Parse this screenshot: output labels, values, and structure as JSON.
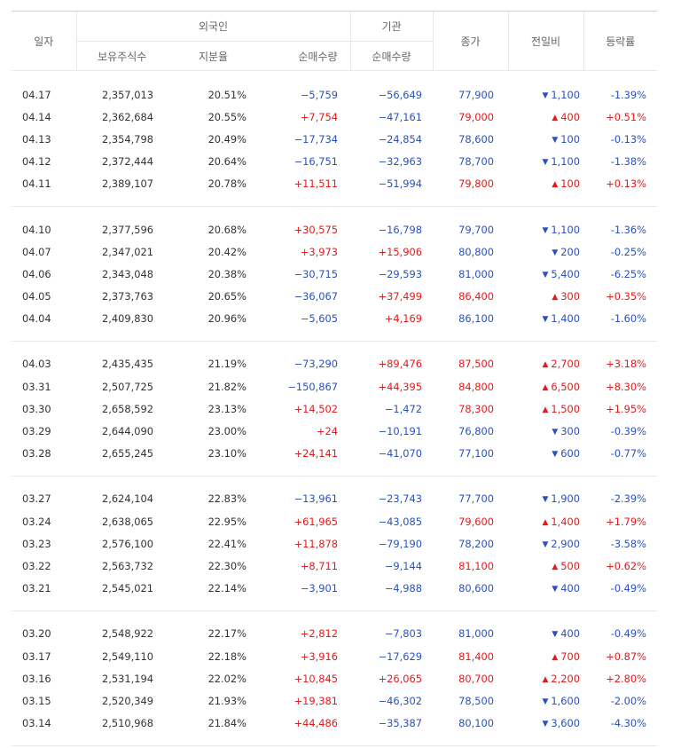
{
  "header": {
    "date": "일자",
    "foreign": "외국인",
    "institution": "기관",
    "holdings": "보유주식수",
    "ownership": "지분율",
    "foreign_net": "순매수량",
    "inst_net": "순매수량",
    "close": "종가",
    "change": "전일비",
    "rate": "등락률"
  },
  "colors": {
    "up": "#e51a1a",
    "down": "#2a52be",
    "text": "#333333"
  },
  "groups": [
    {
      "rows": [
        {
          "date": "04.17",
          "holding": "2,357,013",
          "ratio": "20.51%",
          "fnet": "−5,759",
          "inet": "−56,649",
          "close": "77,900",
          "dir": "down",
          "chg": "1,100",
          "rate": "-1.39%"
        },
        {
          "date": "04.14",
          "holding": "2,362,684",
          "ratio": "20.55%",
          "fnet": "+7,754",
          "inet": "−47,161",
          "close": "79,000",
          "dir": "up",
          "chg": "400",
          "rate": "+0.51%"
        },
        {
          "date": "04.13",
          "holding": "2,354,798",
          "ratio": "20.49%",
          "fnet": "−17,734",
          "inet": "−24,854",
          "close": "78,600",
          "dir": "down",
          "chg": "100",
          "rate": "-0.13%"
        },
        {
          "date": "04.12",
          "holding": "2,372,444",
          "ratio": "20.64%",
          "fnet": "−16,751",
          "inet": "−32,963",
          "close": "78,700",
          "dir": "down",
          "chg": "1,100",
          "rate": "-1.38%"
        },
        {
          "date": "04.11",
          "holding": "2,389,107",
          "ratio": "20.78%",
          "fnet": "+11,511",
          "inet": "−51,994",
          "close": "79,800",
          "dir": "up",
          "chg": "100",
          "rate": "+0.13%"
        }
      ]
    },
    {
      "rows": [
        {
          "date": "04.10",
          "holding": "2,377,596",
          "ratio": "20.68%",
          "fnet": "+30,575",
          "inet": "−16,798",
          "close": "79,700",
          "dir": "down",
          "chg": "1,100",
          "rate": "-1.36%"
        },
        {
          "date": "04.07",
          "holding": "2,347,021",
          "ratio": "20.42%",
          "fnet": "+3,973",
          "inet": "+15,906",
          "close": "80,800",
          "dir": "down",
          "chg": "200",
          "rate": "-0.25%"
        },
        {
          "date": "04.06",
          "holding": "2,343,048",
          "ratio": "20.38%",
          "fnet": "−30,715",
          "inet": "−29,593",
          "close": "81,000",
          "dir": "down",
          "chg": "5,400",
          "rate": "-6.25%"
        },
        {
          "date": "04.05",
          "holding": "2,373,763",
          "ratio": "20.65%",
          "fnet": "−36,067",
          "inet": "+37,499",
          "close": "86,400",
          "dir": "up",
          "chg": "300",
          "rate": "+0.35%"
        },
        {
          "date": "04.04",
          "holding": "2,409,830",
          "ratio": "20.96%",
          "fnet": "−5,605",
          "inet": "+4,169",
          "close": "86,100",
          "dir": "down",
          "chg": "1,400",
          "rate": "-1.60%"
        }
      ]
    },
    {
      "rows": [
        {
          "date": "04.03",
          "holding": "2,435,435",
          "ratio": "21.19%",
          "fnet": "−73,290",
          "inet": "+89,476",
          "close": "87,500",
          "dir": "up",
          "chg": "2,700",
          "rate": "+3.18%"
        },
        {
          "date": "03.31",
          "holding": "2,507,725",
          "ratio": "21.82%",
          "fnet": "−150,867",
          "inet": "+44,395",
          "close": "84,800",
          "dir": "up",
          "chg": "6,500",
          "rate": "+8.30%"
        },
        {
          "date": "03.30",
          "holding": "2,658,592",
          "ratio": "23.13%",
          "fnet": "+14,502",
          "inet": "−1,472",
          "close": "78,300",
          "dir": "up",
          "chg": "1,500",
          "rate": "+1.95%"
        },
        {
          "date": "03.29",
          "holding": "2,644,090",
          "ratio": "23.00%",
          "fnet": "+24",
          "inet": "−10,191",
          "close": "76,800",
          "dir": "down",
          "chg": "300",
          "rate": "-0.39%"
        },
        {
          "date": "03.28",
          "holding": "2,655,245",
          "ratio": "23.10%",
          "fnet": "+24,141",
          "inet": "−41,070",
          "close": "77,100",
          "dir": "down",
          "chg": "600",
          "rate": "-0.77%"
        }
      ]
    },
    {
      "rows": [
        {
          "date": "03.27",
          "holding": "2,624,104",
          "ratio": "22.83%",
          "fnet": "−13,961",
          "inet": "−23,743",
          "close": "77,700",
          "dir": "down",
          "chg": "1,900",
          "rate": "-2.39%"
        },
        {
          "date": "03.24",
          "holding": "2,638,065",
          "ratio": "22.95%",
          "fnet": "+61,965",
          "inet": "−43,085",
          "close": "79,600",
          "dir": "up",
          "chg": "1,400",
          "rate": "+1.79%"
        },
        {
          "date": "03.23",
          "holding": "2,576,100",
          "ratio": "22.41%",
          "fnet": "+11,878",
          "inet": "−79,190",
          "close": "78,200",
          "dir": "down",
          "chg": "2,900",
          "rate": "-3.58%"
        },
        {
          "date": "03.22",
          "holding": "2,563,732",
          "ratio": "22.30%",
          "fnet": "+8,711",
          "inet": "−9,144",
          "close": "81,100",
          "dir": "up",
          "chg": "500",
          "rate": "+0.62%"
        },
        {
          "date": "03.21",
          "holding": "2,545,021",
          "ratio": "22.14%",
          "fnet": "−3,901",
          "inet": "−4,988",
          "close": "80,600",
          "dir": "down",
          "chg": "400",
          "rate": "-0.49%"
        }
      ]
    },
    {
      "rows": [
        {
          "date": "03.20",
          "holding": "2,548,922",
          "ratio": "22.17%",
          "fnet": "+2,812",
          "inet": "−7,803",
          "close": "81,000",
          "dir": "down",
          "chg": "400",
          "rate": "-0.49%"
        },
        {
          "date": "03.17",
          "holding": "2,549,110",
          "ratio": "22.18%",
          "fnet": "+3,916",
          "inet": "−17,629",
          "close": "81,400",
          "dir": "up",
          "chg": "700",
          "rate": "+0.87%"
        },
        {
          "date": "03.16",
          "holding": "2,531,194",
          "ratio": "22.02%",
          "fnet": "+10,845",
          "inet": "+26,065",
          "close": "80,700",
          "dir": "up",
          "chg": "2,200",
          "rate": "+2.80%"
        },
        {
          "date": "03.15",
          "holding": "2,520,349",
          "ratio": "21.93%",
          "fnet": "+19,381",
          "inet": "−46,302",
          "close": "78,500",
          "dir": "down",
          "chg": "1,600",
          "rate": "-2.00%"
        },
        {
          "date": "03.14",
          "holding": "2,510,968",
          "ratio": "21.84%",
          "fnet": "+44,486",
          "inet": "−35,387",
          "close": "80,100",
          "dir": "down",
          "chg": "3,600",
          "rate": "-4.30%"
        }
      ]
    }
  ]
}
